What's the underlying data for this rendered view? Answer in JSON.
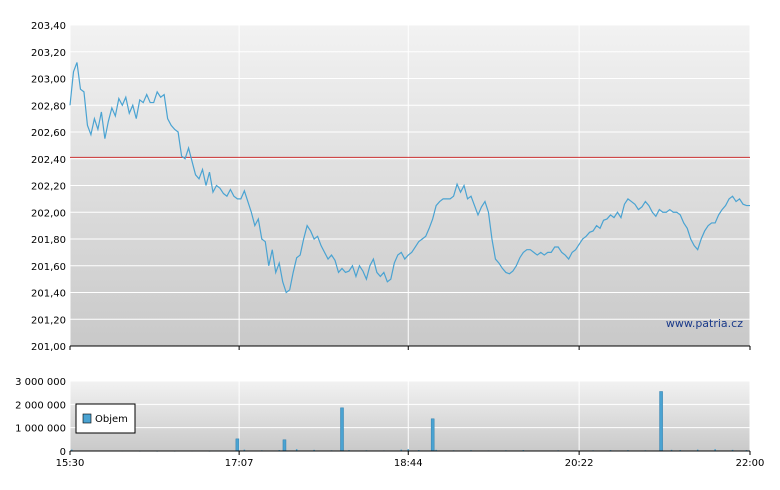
{
  "chart_data": [
    {
      "type": "line",
      "title": "",
      "xlabel": "",
      "ylabel": "",
      "x_ticks": [
        "15:30",
        "17:07",
        "18:44",
        "20:22",
        "22:00"
      ],
      "y_ticks": [
        "201,00",
        "201,20",
        "201,40",
        "201,60",
        "201,80",
        "202,00",
        "202,20",
        "202,40",
        "202,60",
        "202,80",
        "203,00",
        "203,20",
        "203,40"
      ],
      "ylim": [
        201.0,
        203.4
      ],
      "xlim": [
        "15:30",
        "22:00"
      ],
      "reference_line": {
        "value": 202.41,
        "color": "#cc3333"
      },
      "watermark": "www.patria.cz",
      "line_color": "#4aa3d2",
      "series": [
        {
          "values": [
            [
              "15:30",
              202.8
            ],
            [
              "15:32",
              203.05
            ],
            [
              "15:34",
              203.12
            ],
            [
              "15:36",
              202.92
            ],
            [
              "15:38",
              202.9
            ],
            [
              "15:40",
              202.65
            ],
            [
              "15:42",
              202.58
            ],
            [
              "15:44",
              202.7
            ],
            [
              "15:46",
              202.62
            ],
            [
              "15:48",
              202.75
            ],
            [
              "15:50",
              202.55
            ],
            [
              "15:52",
              202.68
            ],
            [
              "15:54",
              202.78
            ],
            [
              "15:56",
              202.72
            ],
            [
              "15:58",
              202.85
            ],
            [
              "16:00",
              202.8
            ],
            [
              "16:02",
              202.86
            ],
            [
              "16:04",
              202.74
            ],
            [
              "16:06",
              202.8
            ],
            [
              "16:08",
              202.7
            ],
            [
              "16:10",
              202.84
            ],
            [
              "16:12",
              202.82
            ],
            [
              "16:14",
              202.88
            ],
            [
              "16:16",
              202.82
            ],
            [
              "16:18",
              202.82
            ],
            [
              "16:20",
              202.9
            ],
            [
              "16:22",
              202.86
            ],
            [
              "16:24",
              202.88
            ],
            [
              "16:26",
              202.7
            ],
            [
              "16:28",
              202.65
            ],
            [
              "16:30",
              202.62
            ],
            [
              "16:32",
              202.6
            ],
            [
              "16:34",
              202.42
            ],
            [
              "16:36",
              202.4
            ],
            [
              "16:38",
              202.48
            ],
            [
              "16:40",
              202.38
            ],
            [
              "16:42",
              202.28
            ],
            [
              "16:44",
              202.25
            ],
            [
              "16:46",
              202.32
            ],
            [
              "16:48",
              202.2
            ],
            [
              "16:50",
              202.3
            ],
            [
              "16:52",
              202.15
            ],
            [
              "16:54",
              202.2
            ],
            [
              "16:56",
              202.18
            ],
            [
              "16:58",
              202.14
            ],
            [
              "17:00",
              202.12
            ],
            [
              "17:02",
              202.17
            ],
            [
              "17:04",
              202.12
            ],
            [
              "17:06",
              202.1
            ],
            [
              "17:08",
              202.1
            ],
            [
              "17:10",
              202.16
            ],
            [
              "17:12",
              202.08
            ],
            [
              "17:14",
              202.0
            ],
            [
              "17:16",
              201.9
            ],
            [
              "17:18",
              201.95
            ],
            [
              "17:20",
              201.8
            ],
            [
              "17:22",
              201.78
            ],
            [
              "17:24",
              201.6
            ],
            [
              "17:26",
              201.72
            ],
            [
              "17:28",
              201.55
            ],
            [
              "17:30",
              201.62
            ],
            [
              "17:32",
              201.48
            ],
            [
              "17:34",
              201.4
            ],
            [
              "17:36",
              201.42
            ],
            [
              "17:38",
              201.55
            ],
            [
              "17:40",
              201.66
            ],
            [
              "17:42",
              201.68
            ],
            [
              "17:44",
              201.8
            ],
            [
              "17:46",
              201.9
            ],
            [
              "17:48",
              201.86
            ],
            [
              "17:50",
              201.8
            ],
            [
              "17:52",
              201.82
            ],
            [
              "17:54",
              201.75
            ],
            [
              "17:56",
              201.7
            ],
            [
              "17:58",
              201.65
            ],
            [
              "18:00",
              201.68
            ],
            [
              "18:02",
              201.64
            ],
            [
              "18:04",
              201.55
            ],
            [
              "18:06",
              201.58
            ],
            [
              "18:08",
              201.55
            ],
            [
              "18:10",
              201.56
            ],
            [
              "18:12",
              201.6
            ],
            [
              "18:14",
              201.52
            ],
            [
              "18:16",
              201.6
            ],
            [
              "18:18",
              201.56
            ],
            [
              "18:20",
              201.5
            ],
            [
              "18:22",
              201.6
            ],
            [
              "18:24",
              201.65
            ],
            [
              "18:26",
              201.55
            ],
            [
              "18:28",
              201.52
            ],
            [
              "18:30",
              201.55
            ],
            [
              "18:32",
              201.48
            ],
            [
              "18:34",
              201.5
            ],
            [
              "18:36",
              201.62
            ],
            [
              "18:38",
              201.68
            ],
            [
              "18:40",
              201.7
            ],
            [
              "18:42",
              201.65
            ],
            [
              "18:44",
              201.68
            ],
            [
              "18:46",
              201.7
            ],
            [
              "18:48",
              201.74
            ],
            [
              "18:50",
              201.78
            ],
            [
              "18:52",
              201.8
            ],
            [
              "18:54",
              201.82
            ],
            [
              "18:56",
              201.88
            ],
            [
              "18:58",
              201.95
            ],
            [
              "19:00",
              202.05
            ],
            [
              "19:02",
              202.08
            ],
            [
              "19:04",
              202.1
            ],
            [
              "19:06",
              202.1
            ],
            [
              "19:08",
              202.1
            ],
            [
              "19:10",
              202.12
            ],
            [
              "19:12",
              202.21
            ],
            [
              "19:14",
              202.15
            ],
            [
              "19:16",
              202.2
            ],
            [
              "19:18",
              202.1
            ],
            [
              "19:20",
              202.12
            ],
            [
              "19:22",
              202.05
            ],
            [
              "19:24",
              201.98
            ],
            [
              "19:26",
              202.04
            ],
            [
              "19:28",
              202.08
            ],
            [
              "19:30",
              202.0
            ],
            [
              "19:32",
              201.8
            ],
            [
              "19:34",
              201.65
            ],
            [
              "19:36",
              201.62
            ],
            [
              "19:38",
              201.58
            ],
            [
              "19:40",
              201.55
            ],
            [
              "19:42",
              201.54
            ],
            [
              "19:44",
              201.56
            ],
            [
              "19:46",
              201.6
            ],
            [
              "19:48",
              201.66
            ],
            [
              "19:50",
              201.7
            ],
            [
              "19:52",
              201.72
            ],
            [
              "19:54",
              201.72
            ],
            [
              "19:56",
              201.7
            ],
            [
              "19:58",
              201.68
            ],
            [
              "20:00",
              201.7
            ],
            [
              "20:02",
              201.68
            ],
            [
              "20:04",
              201.7
            ],
            [
              "20:06",
              201.7
            ],
            [
              "20:08",
              201.74
            ],
            [
              "20:10",
              201.74
            ],
            [
              "20:12",
              201.7
            ],
            [
              "20:14",
              201.68
            ],
            [
              "20:16",
              201.65
            ],
            [
              "20:18",
              201.7
            ],
            [
              "20:20",
              201.72
            ],
            [
              "20:22",
              201.76
            ],
            [
              "20:24",
              201.8
            ],
            [
              "20:26",
              201.82
            ],
            [
              "20:28",
              201.85
            ],
            [
              "20:30",
              201.86
            ],
            [
              "20:32",
              201.9
            ],
            [
              "20:34",
              201.88
            ],
            [
              "20:36",
              201.94
            ],
            [
              "20:38",
              201.95
            ],
            [
              "20:40",
              201.98
            ],
            [
              "20:42",
              201.96
            ],
            [
              "20:44",
              202.0
            ],
            [
              "20:46",
              201.96
            ],
            [
              "20:48",
              202.06
            ],
            [
              "20:50",
              202.1
            ],
            [
              "20:52",
              202.08
            ],
            [
              "20:54",
              202.06
            ],
            [
              "20:56",
              202.02
            ],
            [
              "20:58",
              202.04
            ],
            [
              "21:00",
              202.08
            ],
            [
              "21:02",
              202.05
            ],
            [
              "21:04",
              202.0
            ],
            [
              "21:06",
              201.97
            ],
            [
              "21:08",
              202.02
            ],
            [
              "21:10",
              202.0
            ],
            [
              "21:12",
              202.0
            ],
            [
              "21:14",
              202.02
            ],
            [
              "21:16",
              202.0
            ],
            [
              "21:18",
              202.0
            ],
            [
              "21:20",
              201.98
            ],
            [
              "21:22",
              201.92
            ],
            [
              "21:24",
              201.88
            ],
            [
              "21:26",
              201.8
            ],
            [
              "21:28",
              201.75
            ],
            [
              "21:30",
              201.72
            ],
            [
              "21:32",
              201.8
            ],
            [
              "21:34",
              201.86
            ],
            [
              "21:36",
              201.9
            ],
            [
              "21:38",
              201.92
            ],
            [
              "21:40",
              201.92
            ],
            [
              "21:42",
              201.98
            ],
            [
              "21:44",
              202.02
            ],
            [
              "21:46",
              202.05
            ],
            [
              "21:48",
              202.1
            ],
            [
              "21:50",
              202.12
            ],
            [
              "21:52",
              202.08
            ],
            [
              "21:54",
              202.1
            ],
            [
              "21:56",
              202.06
            ],
            [
              "21:58",
              202.05
            ],
            [
              "22:00",
              202.05
            ]
          ]
        }
      ]
    },
    {
      "type": "bar",
      "title": "",
      "xlabel": "",
      "ylabel": "",
      "x_ticks": [
        "15:30",
        "17:07",
        "18:44",
        "20:22",
        "22:00"
      ],
      "y_ticks": [
        "0",
        "1 000 000",
        "2 000 000",
        "3 000 000"
      ],
      "ylim": [
        0,
        3000000
      ],
      "legend": {
        "labels": [
          "Objem"
        ],
        "placement": "left"
      },
      "bar_color": "#4aa3d2",
      "series": [
        {
          "name": "Objem",
          "values": [
            [
              "15:31",
              60000
            ],
            [
              "15:40",
              20000
            ],
            [
              "15:50",
              15000
            ],
            [
              "16:00",
              12000
            ],
            [
              "16:10",
              10000
            ],
            [
              "16:20",
              8000
            ],
            [
              "16:30",
              10000
            ],
            [
              "16:40",
              12000
            ],
            [
              "16:50",
              9000
            ],
            [
              "17:00",
              15000
            ],
            [
              "17:06",
              520000
            ],
            [
              "17:10",
              60000
            ],
            [
              "17:20",
              30000
            ],
            [
              "17:30",
              40000
            ],
            [
              "17:33",
              480000
            ],
            [
              "17:40",
              80000
            ],
            [
              "17:50",
              50000
            ],
            [
              "18:00",
              30000
            ],
            [
              "18:06",
              1850000
            ],
            [
              "18:10",
              40000
            ],
            [
              "18:20",
              30000
            ],
            [
              "18:30",
              25000
            ],
            [
              "18:40",
              60000
            ],
            [
              "18:44",
              80000
            ],
            [
              "18:50",
              40000
            ],
            [
              "18:58",
              1380000
            ],
            [
              "19:00",
              50000
            ],
            [
              "19:10",
              30000
            ],
            [
              "19:20",
              35000
            ],
            [
              "19:30",
              25000
            ],
            [
              "19:40",
              30000
            ],
            [
              "19:50",
              40000
            ],
            [
              "20:00",
              20000
            ],
            [
              "20:10",
              30000
            ],
            [
              "20:20",
              25000
            ],
            [
              "20:30",
              30000
            ],
            [
              "20:40",
              40000
            ],
            [
              "20:50",
              35000
            ],
            [
              "21:00",
              30000
            ],
            [
              "21:09",
              2550000
            ],
            [
              "21:15",
              50000
            ],
            [
              "21:20",
              40000
            ],
            [
              "21:30",
              60000
            ],
            [
              "21:40",
              80000
            ],
            [
              "21:50",
              50000
            ],
            [
              "21:58",
              40000
            ]
          ]
        }
      ]
    }
  ]
}
